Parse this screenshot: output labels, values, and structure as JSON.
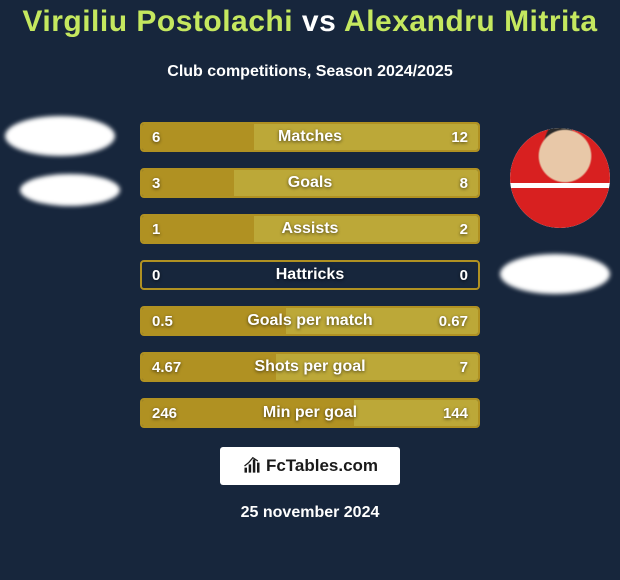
{
  "bg_color": "#17263c",
  "text_color": "#ffffff",
  "left_color": "#b09122",
  "right_color": "#bca838",
  "border_color": "#b09122",
  "title_parts": {
    "p1": "Virgiliu Postolachi",
    "vs": " vs ",
    "p2": "Alexandru Mitrita"
  },
  "p1_color": "#c5e85f",
  "p2_color": "#c5e85f",
  "vs_color": "#ffffff",
  "subtitle": "Club competitions, Season 2024/2025",
  "brand": "FcTables.com",
  "date": "25 november 2024",
  "stats": [
    {
      "label": "Matches",
      "left_val": "6",
      "right_val": "12",
      "left_num": 6,
      "right_num": 12
    },
    {
      "label": "Goals",
      "left_val": "3",
      "right_val": "8",
      "left_num": 3,
      "right_num": 8
    },
    {
      "label": "Assists",
      "left_val": "1",
      "right_val": "2",
      "left_num": 1,
      "right_num": 2
    },
    {
      "label": "Hattricks",
      "left_val": "0",
      "right_val": "0",
      "left_num": 0,
      "right_num": 0
    },
    {
      "label": "Goals per match",
      "left_val": "0.5",
      "right_val": "0.67",
      "left_num": 0.5,
      "right_num": 0.67
    },
    {
      "label": "Shots per goal",
      "left_val": "4.67",
      "right_val": "7",
      "left_num": 4.67,
      "right_num": 7
    },
    {
      "label": "Min per goal",
      "left_val": "246",
      "right_val": "144",
      "left_num": 246,
      "right_num": 144
    }
  ],
  "bar_total_width": 336,
  "row_cfg": {
    "height": 30,
    "gap": 16,
    "border_width": 2,
    "border_radius": 4,
    "label_fontsize": 16,
    "value_fontsize": 15
  },
  "player_left_has_photo": false,
  "player_right_has_photo": true
}
